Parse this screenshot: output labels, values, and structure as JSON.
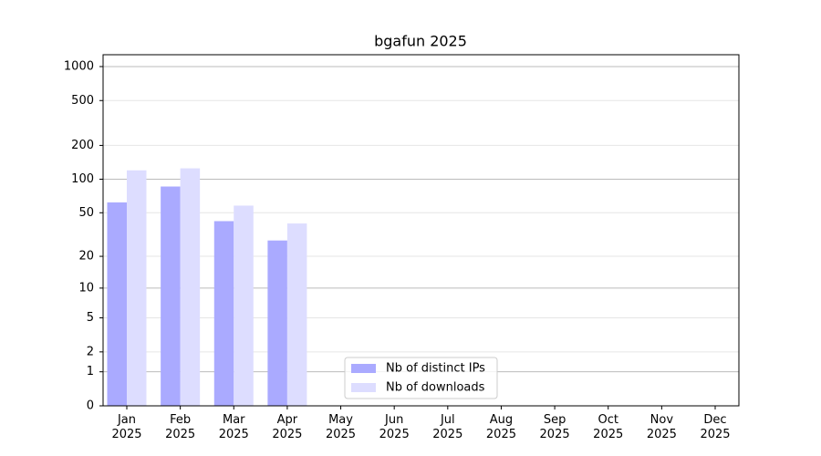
{
  "chart_data": {
    "type": "bar",
    "title": "bgafun 2025",
    "categories": [
      "Jan\n2025",
      "Feb\n2025",
      "Mar\n2025",
      "Apr\n2025",
      "May\n2025",
      "Jun\n2025",
      "Jul\n2025",
      "Aug\n2025",
      "Sep\n2025",
      "Oct\n2025",
      "Nov\n2025",
      "Dec\n2025"
    ],
    "series": [
      {
        "name": "Nb of distinct IPs",
        "color": "#aaaaff",
        "values": [
          62,
          86,
          42,
          28,
          null,
          null,
          null,
          null,
          null,
          null,
          null,
          null
        ]
      },
      {
        "name": "Nb of downloads",
        "color": "#ddddff",
        "values": [
          120,
          125,
          58,
          40,
          null,
          null,
          null,
          null,
          null,
          null,
          null,
          null
        ]
      }
    ],
    "yscale": "symlog",
    "ylim": [
      0,
      1273
    ],
    "yticks": [
      0,
      1,
      2,
      5,
      10,
      20,
      50,
      100,
      200,
      500,
      1000
    ],
    "grid": true,
    "legend": "lower center"
  }
}
